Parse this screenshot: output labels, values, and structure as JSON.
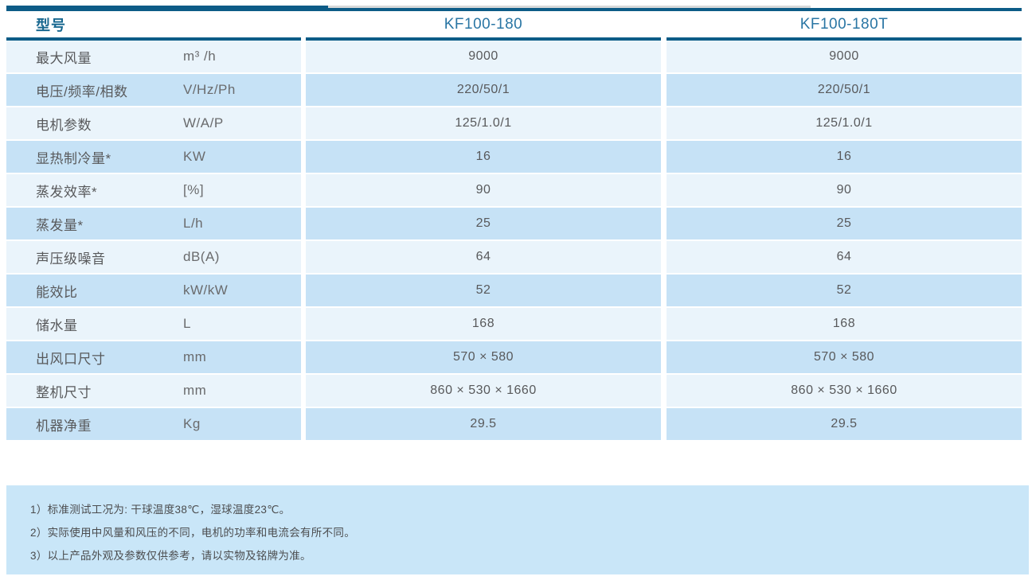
{
  "table": {
    "header": {
      "model_label": "型号",
      "columns": [
        "KF100-180",
        "KF100-180T"
      ]
    },
    "rows": [
      {
        "label": "最大风量",
        "unit": "m³ /h",
        "values": [
          "9000",
          "9000"
        ]
      },
      {
        "label": "电压/频率/相数",
        "unit": "V/Hz/Ph",
        "values": [
          "220/50/1",
          "220/50/1"
        ]
      },
      {
        "label": "电机参数",
        "unit": "W/A/P",
        "values": [
          "125/1.0/1",
          "125/1.0/1"
        ]
      },
      {
        "label": "显热制冷量*",
        "unit": "KW",
        "values": [
          "16",
          "16"
        ]
      },
      {
        "label": "蒸发效率*",
        "unit": "[%]",
        "values": [
          "90",
          "90"
        ]
      },
      {
        "label": "蒸发量*",
        "unit": "L/h",
        "values": [
          "25",
          "25"
        ]
      },
      {
        "label": "声压级噪音",
        "unit": "dB(A)",
        "values": [
          "64",
          "64"
        ]
      },
      {
        "label": "能效比",
        "unit": "kW/kW",
        "values": [
          "52",
          "52"
        ]
      },
      {
        "label": "储水量",
        "unit": "L",
        "values": [
          "168",
          "168"
        ]
      },
      {
        "label": "出风口尺寸",
        "unit": "mm",
        "values": [
          "570 × 580",
          "570 × 580"
        ]
      },
      {
        "label": "整机尺寸",
        "unit": "mm",
        "values": [
          "860 × 530 × 1660",
          "860 × 530 × 1660"
        ]
      },
      {
        "label": "机器净重",
        "unit": "Kg",
        "values": [
          "29.5",
          "29.5"
        ]
      }
    ],
    "footnotes": [
      "1）标准测试工况为: 干球温度38℃，湿球温度23℃。",
      "2）实际使用中风量和风压的不同，电机的功率和电流会有所不同。",
      "3）以上产品外观及参数仅供参考，请以实物及铭牌为准。"
    ]
  },
  "colors": {
    "border_dark": "#0d5c87",
    "header_label_text": "#17678f",
    "model_text": "#2a76a4",
    "row_light": "#eaf4fb",
    "row_dark": "#c6e2f6",
    "note_box_bg": "#c9e6f8",
    "body_text": "#58595b",
    "top_tab_gray": "#d8d9da"
  }
}
